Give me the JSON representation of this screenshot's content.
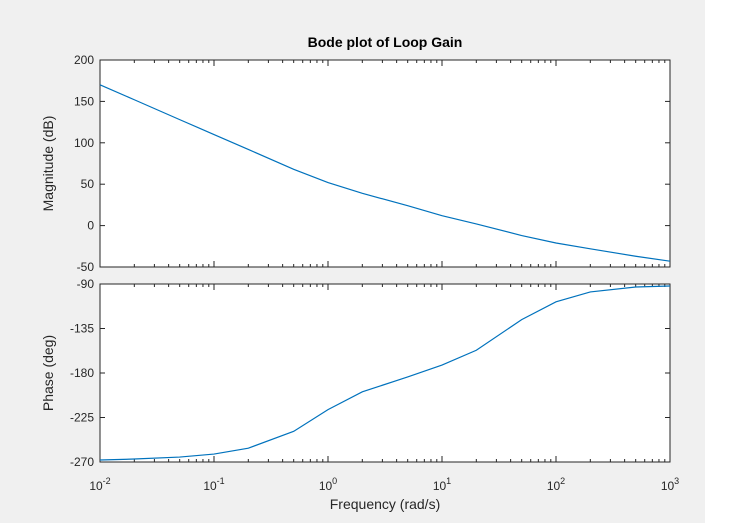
{
  "chart_data": {
    "type": "line",
    "title": "Bode plot of Loop Gain",
    "xlabel": "Frequency  (rad/s)",
    "xscale": "log",
    "xlim": [
      0.01,
      1000
    ],
    "xticks": [
      {
        "value": 0.01,
        "base": "10",
        "exp": "-2"
      },
      {
        "value": 0.1,
        "base": "10",
        "exp": "-1"
      },
      {
        "value": 1,
        "base": "10",
        "exp": "0"
      },
      {
        "value": 10,
        "base": "10",
        "exp": "1"
      },
      {
        "value": 100,
        "base": "10",
        "exp": "2"
      },
      {
        "value": 1000,
        "base": "10",
        "exp": "3"
      }
    ],
    "line_color": "#0072bd",
    "panels": [
      {
        "ylabel": "Magnitude (dB)",
        "ylim": [
          -50,
          200
        ],
        "yticks": [
          "-50",
          "0",
          "50",
          "100",
          "150",
          "200"
        ],
        "x": [
          0.01,
          0.02,
          0.05,
          0.1,
          0.2,
          0.5,
          1,
          2,
          5,
          10,
          20,
          50,
          100,
          200,
          500,
          1000
        ],
        "y": [
          170,
          152,
          128,
          110,
          92,
          68,
          52,
          39,
          24,
          12,
          2,
          -12,
          -21,
          -28,
          -37,
          -43
        ]
      },
      {
        "ylabel": "Phase (deg)",
        "ylim": [
          -270,
          -90
        ],
        "yticks": [
          "-270",
          "-225",
          "-180",
          "-135",
          "-90"
        ],
        "x": [
          0.01,
          0.02,
          0.05,
          0.1,
          0.2,
          0.5,
          1,
          2,
          5,
          10,
          20,
          50,
          100,
          200,
          500,
          1000
        ],
        "y": [
          -268,
          -267,
          -265,
          -262,
          -256,
          -239,
          -217,
          -199,
          -184,
          -172,
          -157,
          -126,
          -108,
          -98,
          -93,
          -92
        ]
      }
    ]
  }
}
